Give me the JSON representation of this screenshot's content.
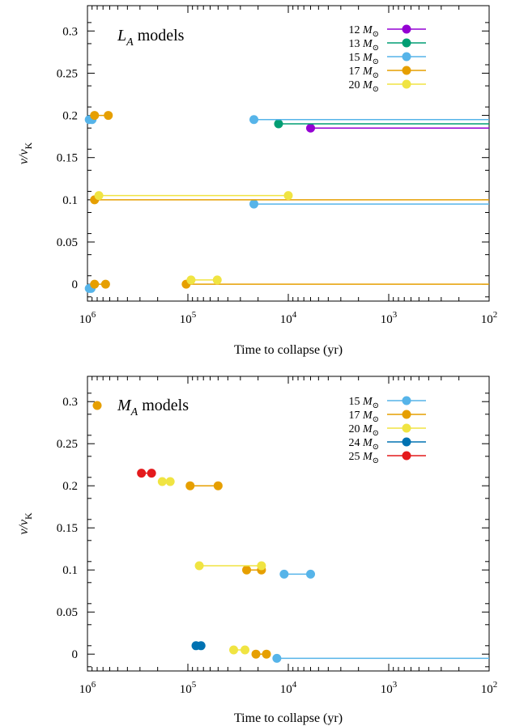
{
  "chart_data": [
    {
      "type": "line",
      "title_main": "L",
      "title_sub": "A",
      "title_rest": " models",
      "title_marker_color": "",
      "xlabel": "Time to collapse (yr)",
      "ylabel_main": "v/v",
      "ylabel_sub": "K",
      "xscale": "log",
      "xreversed": true,
      "xlim": [
        1000000,
        100
      ],
      "ylim": [
        -0.02,
        0.33
      ],
      "xticks": [
        {
          "value": 1000000,
          "base": "10",
          "exp": "6"
        },
        {
          "value": 100000,
          "base": "10",
          "exp": "5"
        },
        {
          "value": 10000,
          "base": "10",
          "exp": "4"
        },
        {
          "value": 1000,
          "base": "10",
          "exp": "3"
        },
        {
          "value": 100,
          "base": "10",
          "exp": "2"
        }
      ],
      "yticks": [
        {
          "value": 0,
          "label": "0"
        },
        {
          "value": 0.05,
          "label": "0.05"
        },
        {
          "value": 0.1,
          "label": "0.1"
        },
        {
          "value": 0.15,
          "label": "0.15"
        },
        {
          "value": 0.2,
          "label": "0.2"
        },
        {
          "value": 0.25,
          "label": "0.25"
        },
        {
          "value": 0.3,
          "label": "0.3"
        }
      ],
      "legend_position": "top-right",
      "series": [
        {
          "name": "12",
          "label_unit": "M",
          "label_sub": "⊙",
          "color": "#9400d3",
          "segments": [
            [
              [
                6000,
                0.185
              ],
              [
                100,
                0.185
              ]
            ]
          ]
        },
        {
          "name": "13",
          "label_unit": "M",
          "label_sub": "⊙",
          "color": "#009e73",
          "segments": [
            [
              [
                12500,
                0.19
              ],
              [
                100,
                0.19
              ]
            ]
          ]
        },
        {
          "name": "15",
          "label_unit": "M",
          "label_sub": "⊙",
          "color": "#56b4e9",
          "segments": [
            [
              [
                960000,
                0.195
              ],
              [
                900000,
                0.195
              ]
            ],
            [
              [
                22000,
                0.195
              ],
              [
                100,
                0.195
              ]
            ],
            [
              [
                22000,
                0.095
              ],
              [
                100,
                0.095
              ]
            ],
            [
              [
                960000,
                -0.005
              ],
              [
                920000,
                -0.005
              ]
            ]
          ]
        },
        {
          "name": "17",
          "label_unit": "M",
          "label_sub": "⊙",
          "color": "#e69f00",
          "segments": [
            [
              [
                850000,
                0.2
              ],
              [
                620000,
                0.2
              ]
            ],
            [
              [
                850000,
                0.1
              ],
              [
                100,
                0.1
              ]
            ],
            [
              [
                850000,
                0.0
              ],
              [
                660000,
                0.0
              ]
            ],
            [
              [
                104000,
                0.0
              ],
              [
                100,
                0.0
              ]
            ]
          ]
        },
        {
          "name": "20",
          "label_unit": "M",
          "label_sub": "⊙",
          "color": "#f0e442",
          "segments": [
            [
              [
                770000,
                0.105
              ],
              [
                10000,
                0.105
              ]
            ],
            [
              [
                93000,
                0.005
              ],
              [
                51000,
                0.005
              ]
            ]
          ]
        }
      ]
    },
    {
      "type": "line",
      "title_main": "M",
      "title_sub": "A",
      "title_rest": " models",
      "title_marker_color": "#e69f00",
      "xlabel": "Time to collapse (yr)",
      "ylabel_main": "v/v",
      "ylabel_sub": "K",
      "xscale": "log",
      "xreversed": true,
      "xlim": [
        1000000,
        100
      ],
      "ylim": [
        -0.02,
        0.33
      ],
      "xticks": [
        {
          "value": 1000000,
          "base": "10",
          "exp": "6"
        },
        {
          "value": 100000,
          "base": "10",
          "exp": "5"
        },
        {
          "value": 10000,
          "base": "10",
          "exp": "4"
        },
        {
          "value": 1000,
          "base": "10",
          "exp": "3"
        },
        {
          "value": 100,
          "base": "10",
          "exp": "2"
        }
      ],
      "yticks": [
        {
          "value": 0,
          "label": "0"
        },
        {
          "value": 0.05,
          "label": "0.05"
        },
        {
          "value": 0.1,
          "label": "0.1"
        },
        {
          "value": 0.15,
          "label": "0.15"
        },
        {
          "value": 0.2,
          "label": "0.2"
        },
        {
          "value": 0.25,
          "label": "0.25"
        },
        {
          "value": 0.3,
          "label": "0.3"
        }
      ],
      "legend_position": "top-right",
      "series": [
        {
          "name": "15",
          "label_unit": "M",
          "label_sub": "⊙",
          "color": "#56b4e9",
          "segments": [
            [
              [
                11000,
                0.095
              ],
              [
                6000,
                0.095
              ]
            ],
            [
              [
                13000,
                -0.005
              ],
              [
                100,
                -0.005
              ]
            ]
          ]
        },
        {
          "name": "17",
          "label_unit": "M",
          "label_sub": "⊙",
          "color": "#e69f00",
          "segments": [
            [
              [
                95000,
                0.2
              ],
              [
                50000,
                0.2
              ]
            ],
            [
              [
                26000,
                0.1
              ],
              [
                18500,
                0.1
              ]
            ],
            [
              [
                21000,
                0.0
              ],
              [
                16500,
                0.0
              ]
            ]
          ]
        },
        {
          "name": "20",
          "label_unit": "M",
          "label_sub": "⊙",
          "color": "#f0e442",
          "segments": [
            [
              [
                180000,
                0.205
              ],
              [
                150000,
                0.205
              ]
            ],
            [
              [
                77000,
                0.105
              ],
              [
                18500,
                0.105
              ]
            ],
            [
              [
                35000,
                0.005
              ],
              [
                27000,
                0.005
              ]
            ]
          ]
        },
        {
          "name": "24",
          "label_unit": "M",
          "label_sub": "⊙",
          "color": "#0072b2",
          "segments": [
            [
              [
                83000,
                0.01
              ],
              [
                74000,
                0.01
              ]
            ]
          ]
        },
        {
          "name": "25",
          "label_unit": "M",
          "label_sub": "⊙",
          "color": "#e41a1c",
          "segments": [
            [
              [
                290000,
                0.215
              ],
              [
                230000,
                0.215
              ]
            ]
          ]
        }
      ]
    }
  ]
}
